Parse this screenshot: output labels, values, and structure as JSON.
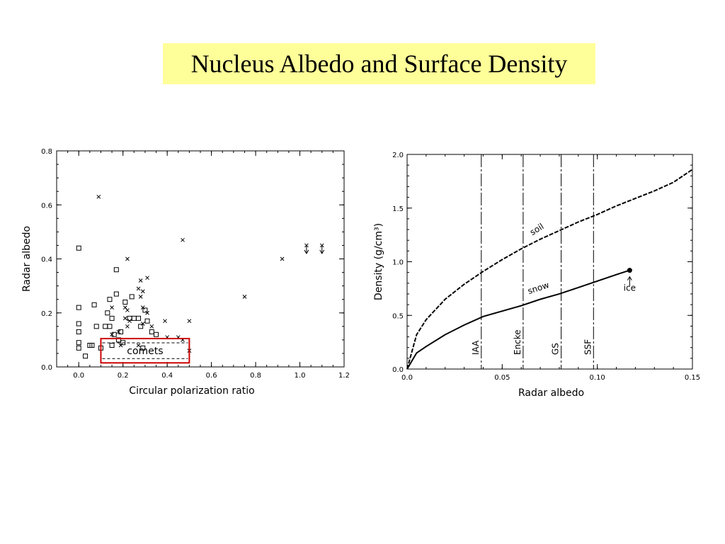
{
  "slide": {
    "title": "Nucleus Albedo and Surface Density",
    "title_bg": "#ffff99"
  },
  "chart_data": [
    {
      "type": "scatter",
      "title": "",
      "xlabel": "Circular polarization ratio",
      "ylabel": "Radar albedo",
      "xlim": [
        -0.1,
        1.2
      ],
      "ylim": [
        0.0,
        0.8
      ],
      "xticks": [
        "0.0",
        "0.2",
        "0.4",
        "0.6",
        "0.8",
        "1.0",
        "1.2"
      ],
      "yticks": [
        "0.0",
        "0.2",
        "0.4",
        "0.6",
        "0.8"
      ],
      "annotation": "comets",
      "annotation_color": "#cc0000",
      "series": [
        {
          "marker": "square",
          "points": [
            [
              0.0,
              0.44
            ],
            [
              0.0,
              0.22
            ],
            [
              0.0,
              0.16
            ],
            [
              0.0,
              0.13
            ],
            [
              0.0,
              0.09
            ],
            [
              0.0,
              0.07
            ],
            [
              0.03,
              0.04
            ],
            [
              0.05,
              0.08
            ],
            [
              0.06,
              0.08
            ],
            [
              0.07,
              0.23
            ],
            [
              0.08,
              0.15
            ],
            [
              0.1,
              0.07
            ],
            [
              0.12,
              0.15
            ],
            [
              0.13,
              0.2
            ],
            [
              0.14,
              0.15
            ],
            [
              0.14,
              0.25
            ],
            [
              0.15,
              0.18
            ],
            [
              0.16,
              0.12
            ],
            [
              0.17,
              0.27
            ],
            [
              0.17,
              0.36
            ],
            [
              0.18,
              0.1
            ],
            [
              0.19,
              0.13
            ],
            [
              0.2,
              0.09
            ],
            [
              0.21,
              0.24
            ],
            [
              0.23,
              0.18
            ],
            [
              0.24,
              0.26
            ],
            [
              0.25,
              0.18
            ],
            [
              0.27,
              0.18
            ],
            [
              0.28,
              0.15
            ],
            [
              0.29,
              0.07
            ],
            [
              0.3,
              0.21
            ],
            [
              0.31,
              0.17
            ],
            [
              0.33,
              0.13
            ],
            [
              0.35,
              0.12
            ],
            [
              0.15,
              0.08
            ]
          ]
        },
        {
          "marker": "cross",
          "points": [
            [
              0.09,
              0.63
            ],
            [
              0.22,
              0.4
            ],
            [
              0.47,
              0.47
            ],
            [
              0.75,
              0.26
            ],
            [
              0.92,
              0.4
            ],
            [
              0.31,
              0.33
            ],
            [
              0.28,
              0.32
            ],
            [
              0.28,
              0.26
            ],
            [
              0.29,
              0.28
            ],
            [
              0.27,
              0.29
            ],
            [
              0.21,
              0.22
            ],
            [
              0.22,
              0.21
            ],
            [
              0.15,
              0.22
            ],
            [
              0.23,
              0.17
            ],
            [
              0.29,
              0.22
            ],
            [
              0.31,
              0.2
            ],
            [
              0.29,
              0.16
            ],
            [
              0.33,
              0.15
            ],
            [
              0.39,
              0.17
            ],
            [
              0.5,
              0.17
            ],
            [
              0.47,
              0.1
            ],
            [
              0.45,
              0.11
            ],
            [
              0.27,
              0.08
            ],
            [
              0.19,
              0.08
            ],
            [
              0.18,
              0.13
            ],
            [
              0.22,
              0.15
            ],
            [
              0.15,
              0.12
            ],
            [
              0.5,
              0.06
            ],
            [
              0.4,
              0.11
            ],
            [
              0.21,
              0.18
            ]
          ]
        },
        {
          "marker": "range-arrow",
          "points": [
            [
              1.03,
              0.42,
              0.45
            ],
            [
              1.1,
              0.42,
              0.45
            ]
          ]
        }
      ]
    },
    {
      "type": "line",
      "title": "",
      "xlabel": "Radar albedo",
      "ylabel": "Density (g/cm³)",
      "xlim": [
        0.0,
        0.15
      ],
      "ylim": [
        0.0,
        2.0
      ],
      "xticks": [
        "0.0",
        "0.05",
        "0.10",
        "0.15"
      ],
      "yticks": [
        "0.0",
        "0.5",
        "1.0",
        "1.5",
        "2.0"
      ],
      "series": [
        {
          "name": "soil",
          "style": "dashed",
          "x": [
            0.0,
            0.005,
            0.01,
            0.02,
            0.03,
            0.04,
            0.05,
            0.06,
            0.07,
            0.08,
            0.09,
            0.1,
            0.11,
            0.12,
            0.13,
            0.14,
            0.15
          ],
          "y": [
            0.0,
            0.32,
            0.46,
            0.65,
            0.79,
            0.91,
            1.02,
            1.12,
            1.21,
            1.29,
            1.37,
            1.44,
            1.52,
            1.59,
            1.66,
            1.74,
            1.86
          ]
        },
        {
          "name": "snow",
          "style": "solid",
          "x": [
            0.0,
            0.005,
            0.01,
            0.02,
            0.03,
            0.04,
            0.05,
            0.06,
            0.07,
            0.08,
            0.09,
            0.1,
            0.11,
            0.117
          ],
          "y": [
            0.0,
            0.15,
            0.21,
            0.32,
            0.41,
            0.49,
            0.54,
            0.59,
            0.65,
            0.7,
            0.76,
            0.82,
            0.88,
            0.92
          ]
        }
      ],
      "points": [
        {
          "label": "ice",
          "x": 0.117,
          "y": 0.92
        }
      ],
      "vlines": [
        {
          "label": "IAA",
          "x": 0.039
        },
        {
          "label": "Encke",
          "x": 0.061
        },
        {
          "label": "GS",
          "x": 0.081
        },
        {
          "label": "SSF",
          "x": 0.098
        }
      ]
    }
  ]
}
